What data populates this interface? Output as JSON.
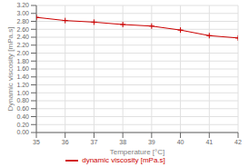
{
  "chart_data": {
    "type": "line",
    "x": [
      35,
      36,
      37,
      38,
      39,
      40,
      41,
      42
    ],
    "series": [
      {
        "name": "dynamic viscosity [mPa.s]",
        "color": "#cc0000",
        "values": [
          2.9,
          2.82,
          2.78,
          2.72,
          2.68,
          2.58,
          2.44,
          2.38
        ],
        "marker": "plus",
        "line_style": "solid"
      }
    ],
    "xlabel": "Temperature [°C]",
    "ylabel": "Dynamic viscosity [mPa.s]",
    "xlim": [
      35,
      42
    ],
    "ylim": [
      0.0,
      3.2
    ],
    "xticks": [
      35,
      36,
      37,
      38,
      39,
      40,
      41,
      42
    ],
    "yticks": [
      {
        "value": 0.0,
        "label": "0.00"
      },
      {
        "value": 0.2,
        "label": "0.20"
      },
      {
        "value": 0.4,
        "label": "0.40"
      },
      {
        "value": 0.6,
        "label": "0.60"
      },
      {
        "value": 0.8,
        "label": "0.80"
      },
      {
        "value": 1.0,
        "label": "1.00"
      },
      {
        "value": 1.2,
        "label": "1.20"
      },
      {
        "value": 1.4,
        "label": "1.40"
      },
      {
        "value": 1.6,
        "label": "1.60"
      },
      {
        "value": 1.8,
        "label": "1.80"
      },
      {
        "value": 2.0,
        "label": "2.00"
      },
      {
        "value": 2.2,
        "label": "2.20"
      },
      {
        "value": 2.4,
        "label": "2.40"
      },
      {
        "value": 2.6,
        "label": "2.60"
      },
      {
        "value": 2.8,
        "label": "2.80"
      },
      {
        "value": 3.0,
        "label": "3.00"
      },
      {
        "value": 3.2,
        "label": "3.20"
      }
    ],
    "grid": true,
    "legend": "bottom"
  }
}
